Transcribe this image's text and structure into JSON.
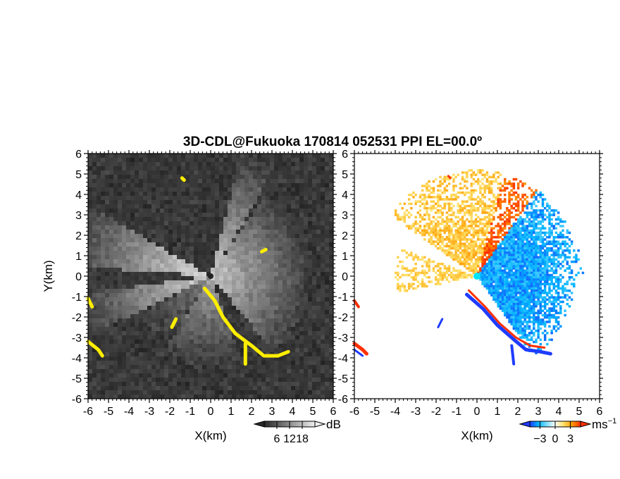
{
  "chart_data": [
    {
      "type": "heatmap",
      "title": "3D-CDL@Fukuoka 170814 052531 PPI EL=00.0º",
      "xlabel": "X(km)",
      "ylabel": "Y(km)",
      "xlim": [
        -6,
        6
      ],
      "ylim": [
        -6,
        6
      ],
      "x_ticks": [
        "-6",
        "-5",
        "-4",
        "-3",
        "-2",
        "-1",
        "0",
        "1",
        "2",
        "3",
        "4",
        "5",
        "6"
      ],
      "y_ticks": [
        "6",
        "5",
        "4",
        "3",
        "2",
        "1",
        "0",
        "-1",
        "-2",
        "-3",
        "-4",
        "-5",
        "-6"
      ],
      "colorbar": {
        "unit": "dB",
        "ticks": [
          "6",
          "12",
          "18"
        ],
        "range": [
          0,
          24
        ],
        "colormap": "grayscale"
      },
      "highlight_color": "#ffee00"
    },
    {
      "type": "heatmap",
      "xlabel": "X(km)",
      "xlim": [
        -6,
        6
      ],
      "ylim": [
        -6,
        6
      ],
      "x_ticks": [
        "-6",
        "-5",
        "-4",
        "-3",
        "-2",
        "-1",
        "0",
        "1",
        "2",
        "3",
        "4",
        "5",
        "6"
      ],
      "y_ticks": [
        "6",
        "5",
        "4",
        "3",
        "2",
        "1",
        "0",
        "-1",
        "-2",
        "-3",
        "-4",
        "-5",
        "-6"
      ],
      "colorbar": {
        "unit": "ms",
        "unit_superscript": "−1",
        "ticks": [
          "−3",
          "0",
          "3"
        ],
        "range": [
          -5,
          5
        ],
        "colors": [
          "#1e3cff",
          "#00b4ff",
          "#7fe0ff",
          "#ffffff",
          "#ffe066",
          "#ff9a00",
          "#ff3000"
        ]
      }
    }
  ]
}
